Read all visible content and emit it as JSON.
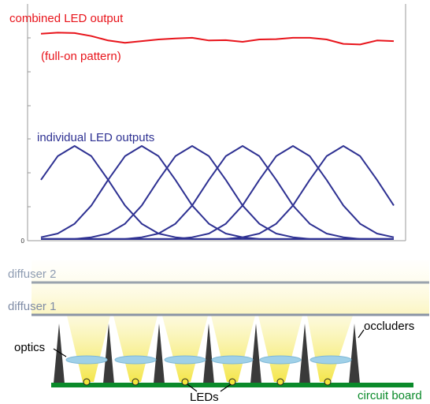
{
  "chart_data": {
    "type": "line",
    "annotations": [
      "combined LED output",
      "(full-on pattern)",
      "individual LED outputs"
    ],
    "categories": [
      null,
      null,
      null,
      null,
      null,
      null,
      null,
      null,
      null,
      null,
      null,
      null,
      null,
      null,
      null,
      null,
      null,
      null,
      null,
      null,
      null,
      null
    ],
    "ylim": [
      0,
      7
    ],
    "yticks": [
      0
    ],
    "series": [
      {
        "color": "#e8141b",
        "values": [
          6.12,
          6.15,
          6.14,
          6.05,
          5.92,
          5.85,
          5.9,
          5.95,
          5.98,
          6.0,
          5.92,
          5.93,
          5.88,
          5.95,
          5.96,
          6.0,
          6.0,
          5.95,
          5.82,
          5.8,
          5.92,
          5.9
        ]
      },
      {
        "color": "#2e3192",
        "values": [
          1.8,
          2.5,
          2.8,
          2.5,
          1.8,
          1.04,
          0.5,
          0.21,
          0.1,
          0.05,
          0.05,
          0.05,
          0.05,
          0.05,
          0.05,
          0.05,
          0.05,
          0.05,
          0.05,
          0.05,
          0.05,
          0.05
        ]
      },
      {
        "color": "#2e3192",
        "values": [
          0.1,
          0.21,
          0.5,
          1.04,
          1.8,
          2.5,
          2.8,
          2.5,
          1.8,
          1.04,
          0.5,
          0.21,
          0.1,
          0.05,
          0.05,
          0.05,
          0.05,
          0.05,
          0.05,
          0.05,
          0.05,
          0.05
        ]
      },
      {
        "color": "#2e3192",
        "values": [
          0.05,
          0.05,
          0.05,
          0.1,
          0.21,
          0.5,
          1.04,
          1.8,
          2.5,
          2.8,
          2.5,
          1.8,
          1.04,
          0.5,
          0.21,
          0.1,
          0.05,
          0.05,
          0.05,
          0.05,
          0.05,
          0.05
        ]
      },
      {
        "color": "#2e3192",
        "values": [
          0.05,
          0.05,
          0.05,
          0.05,
          0.05,
          0.05,
          0.1,
          0.21,
          0.5,
          1.04,
          1.8,
          2.5,
          2.8,
          2.5,
          1.8,
          1.04,
          0.5,
          0.21,
          0.1,
          0.05,
          0.05,
          0.05
        ]
      },
      {
        "color": "#2e3192",
        "values": [
          0.05,
          0.05,
          0.05,
          0.05,
          0.05,
          0.05,
          0.05,
          0.05,
          0.05,
          0.1,
          0.21,
          0.5,
          1.04,
          1.8,
          2.5,
          2.8,
          2.5,
          1.8,
          1.04,
          0.5,
          0.21,
          0.1
        ]
      },
      {
        "color": "#2e3192",
        "values": [
          0.05,
          0.05,
          0.05,
          0.05,
          0.05,
          0.05,
          0.05,
          0.05,
          0.05,
          0.05,
          0.05,
          0.05,
          0.1,
          0.21,
          0.5,
          1.04,
          1.8,
          2.5,
          2.8,
          2.5,
          1.8,
          1.04
        ]
      }
    ]
  },
  "diagram": {
    "labels": [
      "diffuser 2",
      "diffuser 1",
      "optics",
      "occluders",
      "LEDs",
      "circuit board"
    ]
  }
}
